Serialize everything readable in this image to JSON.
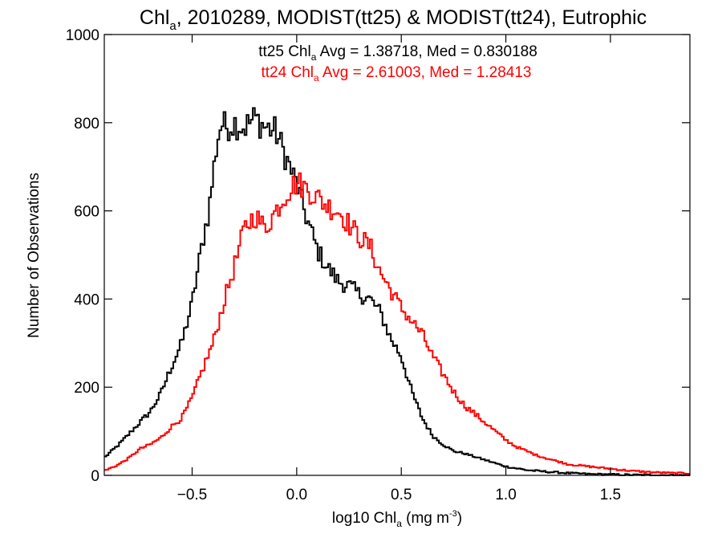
{
  "chart_data": {
    "type": "line",
    "title_main": "Chl",
    "title_sub": "a",
    "title_rest": ", 2010289, MODIST(tt25) & MODIST(tt24), Eutrophic",
    "xlabel_pre": "log10 Chl",
    "xlabel_sub": "a",
    "xlabel_mid": " (mg m",
    "xlabel_sup": "-3",
    "xlabel_post": ")",
    "ylabel": "Number of Observations",
    "xlim": [
      -0.92,
      1.88
    ],
    "ylim": [
      0,
      1000
    ],
    "xticks": [
      -0.5,
      0.0,
      0.5,
      1.0,
      1.5
    ],
    "xtick_labels": [
      "−0.5",
      "0.0",
      "0.5",
      "1.0",
      "1.5"
    ],
    "yticks": [
      0,
      200,
      400,
      600,
      800,
      1000
    ],
    "ytick_labels": [
      "0",
      "200",
      "400",
      "600",
      "800",
      "1000"
    ],
    "annotations": [
      {
        "pre": "tt25 Chl",
        "sub": "a",
        "post": " Avg = 1.38718, Med = 0.830188",
        "color": "#000000"
      },
      {
        "pre": "tt24 Chl",
        "sub": "a",
        "post": " Avg = 2.61003, Med = 1.28413",
        "color": "#ff0000"
      }
    ],
    "series": [
      {
        "color": "#000000",
        "x": [
          -0.92,
          -0.85,
          -0.8,
          -0.75,
          -0.7,
          -0.65,
          -0.6,
          -0.55,
          -0.5,
          -0.45,
          -0.42,
          -0.4,
          -0.38,
          -0.36,
          -0.34,
          -0.3,
          -0.25,
          -0.2,
          -0.15,
          -0.1,
          -0.05,
          0.0,
          0.05,
          0.1,
          0.15,
          0.2,
          0.25,
          0.3,
          0.35,
          0.4,
          0.45,
          0.5,
          0.55,
          0.6,
          0.65,
          0.7,
          0.75,
          0.8,
          0.9,
          1.0,
          1.1,
          1.2,
          1.3,
          1.4,
          1.5,
          1.6,
          1.7,
          1.8,
          1.88
        ],
        "y": [
          40,
          70,
          95,
          120,
          145,
          185,
          245,
          300,
          390,
          530,
          600,
          680,
          760,
          800,
          790,
          800,
          790,
          810,
          790,
          780,
          720,
          660,
          580,
          510,
          470,
          440,
          430,
          410,
          400,
          370,
          310,
          270,
          190,
          130,
          90,
          70,
          55,
          50,
          35,
          20,
          12,
          8,
          5,
          3,
          2,
          1,
          1,
          0,
          0
        ]
      },
      {
        "color": "#ff0000",
        "x": [
          -0.92,
          -0.85,
          -0.8,
          -0.75,
          -0.7,
          -0.65,
          -0.6,
          -0.55,
          -0.5,
          -0.45,
          -0.4,
          -0.35,
          -0.3,
          -0.25,
          -0.2,
          -0.15,
          -0.1,
          -0.05,
          0.0,
          0.05,
          0.1,
          0.15,
          0.2,
          0.25,
          0.3,
          0.35,
          0.4,
          0.45,
          0.5,
          0.55,
          0.6,
          0.65,
          0.7,
          0.75,
          0.8,
          0.85,
          0.9,
          0.95,
          1.0,
          1.05,
          1.1,
          1.15,
          1.2,
          1.3,
          1.4,
          1.5,
          1.6,
          1.7,
          1.8,
          1.88
        ],
        "y": [
          10,
          25,
          40,
          60,
          70,
          85,
          110,
          130,
          175,
          240,
          300,
          390,
          470,
          560,
          590,
          560,
          600,
          640,
          665,
          650,
          630,
          610,
          600,
          570,
          540,
          520,
          460,
          420,
          380,
          350,
          320,
          270,
          230,
          190,
          160,
          140,
          120,
          100,
          80,
          65,
          55,
          45,
          38,
          25,
          20,
          15,
          10,
          7,
          5,
          5
        ]
      }
    ]
  }
}
